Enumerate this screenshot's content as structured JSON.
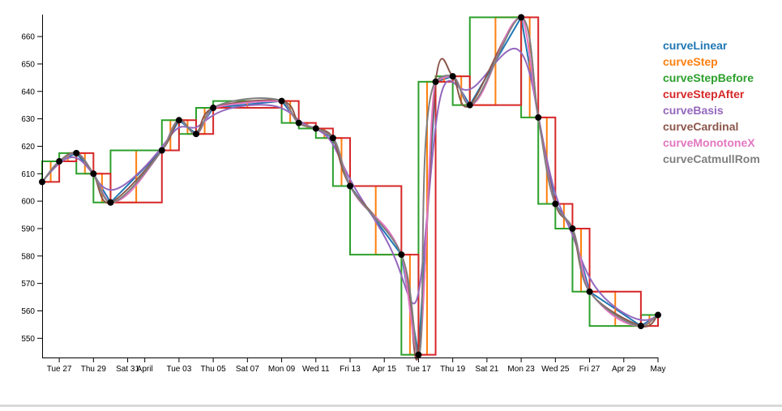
{
  "chart_data": {
    "type": "line",
    "title": "",
    "xlabel": "",
    "ylabel": "",
    "ylim": [
      543,
      668
    ],
    "yticks": [
      550,
      560,
      570,
      580,
      590,
      600,
      610,
      620,
      630,
      640,
      650,
      660
    ],
    "xlim": [
      "2018-03-26",
      "2018-05-01"
    ],
    "xticks": [
      {
        "date": "2018-03-27",
        "label": "Tue 27"
      },
      {
        "date": "2018-03-29",
        "label": "Thu 29"
      },
      {
        "date": "2018-03-31",
        "label": "Sat 31"
      },
      {
        "date": "2018-04-01",
        "label": "April"
      },
      {
        "date": "2018-04-03",
        "label": "Tue 03"
      },
      {
        "date": "2018-04-05",
        "label": "Thu 05"
      },
      {
        "date": "2018-04-07",
        "label": "Sat 07"
      },
      {
        "date": "2018-04-09",
        "label": "Mon 09"
      },
      {
        "date": "2018-04-11",
        "label": "Wed 11"
      },
      {
        "date": "2018-04-13",
        "label": "Fri 13"
      },
      {
        "date": "2018-04-15",
        "label": "Apr 15"
      },
      {
        "date": "2018-04-17",
        "label": "Tue 17"
      },
      {
        "date": "2018-04-19",
        "label": "Thu 19"
      },
      {
        "date": "2018-04-21",
        "label": "Sat 21"
      },
      {
        "date": "2018-04-23",
        "label": "Mon 23"
      },
      {
        "date": "2018-04-25",
        "label": "Wed 25"
      },
      {
        "date": "2018-04-27",
        "label": "Fri 27"
      },
      {
        "date": "2018-04-29",
        "label": "Apr 29"
      },
      {
        "date": "2018-05-01",
        "label": "May"
      }
    ],
    "points": [
      {
        "x": "2018-03-26",
        "y": 607
      },
      {
        "x": "2018-03-27",
        "y": 614.5
      },
      {
        "x": "2018-03-28",
        "y": 617.5
      },
      {
        "x": "2018-03-29",
        "y": 610
      },
      {
        "x": "2018-03-30",
        "y": 599.5
      },
      {
        "x": "2018-04-02",
        "y": 618.5
      },
      {
        "x": "2018-04-03",
        "y": 629.5
      },
      {
        "x": "2018-04-04",
        "y": 624.5
      },
      {
        "x": "2018-04-05",
        "y": 634
      },
      {
        "x": "2018-04-09",
        "y": 636.5
      },
      {
        "x": "2018-04-10",
        "y": 628.5
      },
      {
        "x": "2018-04-11",
        "y": 626.5
      },
      {
        "x": "2018-04-12",
        "y": 623
      },
      {
        "x": "2018-04-13",
        "y": 605.5
      },
      {
        "x": "2018-04-16",
        "y": 580.5
      },
      {
        "x": "2018-04-17",
        "y": 544
      },
      {
        "x": "2018-04-18",
        "y": 643.5
      },
      {
        "x": "2018-04-19",
        "y": 645.5
      },
      {
        "x": "2018-04-20",
        "y": 635
      },
      {
        "x": "2018-04-23",
        "y": 667
      },
      {
        "x": "2018-04-24",
        "y": 630.5
      },
      {
        "x": "2018-04-25",
        "y": 599
      },
      {
        "x": "2018-04-26",
        "y": 590
      },
      {
        "x": "2018-04-27",
        "y": 567
      },
      {
        "x": "2018-04-30",
        "y": 554.5
      },
      {
        "x": "2018-05-01",
        "y": 558.5
      }
    ],
    "series": [
      {
        "name": "curveLinear",
        "curve": "linear",
        "color": "#1f77b4"
      },
      {
        "name": "curveStep",
        "curve": "step",
        "color": "#ff7f0e"
      },
      {
        "name": "curveStepBefore",
        "curve": "stepBefore",
        "color": "#2ca02c"
      },
      {
        "name": "curveStepAfter",
        "curve": "stepAfter",
        "color": "#d62728"
      },
      {
        "name": "curveBasis",
        "curve": "basis",
        "color": "#9467bd"
      },
      {
        "name": "curveCardinal",
        "curve": "cardinal",
        "color": "#8c564b"
      },
      {
        "name": "curveMonotoneX",
        "curve": "monotoneX",
        "color": "#e377c2"
      },
      {
        "name": "curveCatmullRom",
        "curve": "catmullRom",
        "color": "#7f7f7f"
      }
    ],
    "legend_placement": "top-right",
    "grid": false,
    "point_color": "#000000"
  }
}
